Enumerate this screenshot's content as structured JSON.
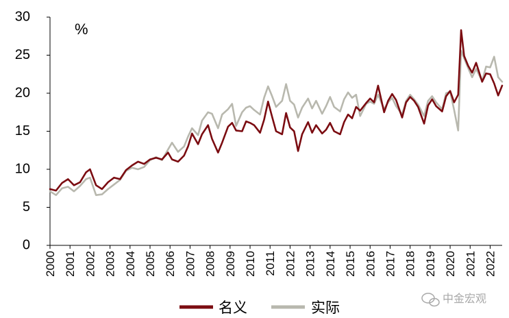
{
  "chart_data": {
    "type": "line",
    "unit_label": "%",
    "ylim": [
      0,
      30
    ],
    "y_ticks": [
      "0",
      "5",
      "10",
      "15",
      "20",
      "25",
      "30"
    ],
    "x_ticks": [
      "2000",
      "2001",
      "2002",
      "2003",
      "2004",
      "2005",
      "2006",
      "2007",
      "2008",
      "2009",
      "2010",
      "2011",
      "2012",
      "2013",
      "2014",
      "2015",
      "2016",
      "2017",
      "2018",
      "2019",
      "2020",
      "2021",
      "2022"
    ],
    "xlim": [
      2000.0,
      2022.6
    ],
    "grid": false,
    "legend_position": "bottom",
    "series": [
      {
        "name": "名义",
        "color": "#7b0c11",
        "points": [
          [
            2000.0,
            7.4
          ],
          [
            2000.3,
            7.2
          ],
          [
            2000.6,
            8.2
          ],
          [
            2000.9,
            8.7
          ],
          [
            2001.2,
            7.9
          ],
          [
            2001.5,
            8.3
          ],
          [
            2001.8,
            9.6
          ],
          [
            2002.0,
            10.0
          ],
          [
            2002.3,
            7.9
          ],
          [
            2002.6,
            7.4
          ],
          [
            2002.9,
            8.3
          ],
          [
            2003.2,
            8.9
          ],
          [
            2003.5,
            8.7
          ],
          [
            2003.8,
            9.9
          ],
          [
            2004.1,
            10.5
          ],
          [
            2004.4,
            11.0
          ],
          [
            2004.7,
            10.7
          ],
          [
            2005.0,
            11.3
          ],
          [
            2005.3,
            11.5
          ],
          [
            2005.6,
            11.3
          ],
          [
            2005.9,
            12.2
          ],
          [
            2006.1,
            11.3
          ],
          [
            2006.4,
            11.0
          ],
          [
            2006.7,
            11.8
          ],
          [
            2006.9,
            13.0
          ],
          [
            2007.1,
            14.7
          ],
          [
            2007.4,
            13.3
          ],
          [
            2007.6,
            14.6
          ],
          [
            2007.9,
            15.8
          ],
          [
            2008.1,
            14.0
          ],
          [
            2008.4,
            12.2
          ],
          [
            2008.6,
            13.5
          ],
          [
            2008.9,
            15.6
          ],
          [
            2009.1,
            16.1
          ],
          [
            2009.3,
            15.1
          ],
          [
            2009.6,
            15.0
          ],
          [
            2009.8,
            16.3
          ],
          [
            2010.0,
            16.1
          ],
          [
            2010.2,
            15.8
          ],
          [
            2010.5,
            14.8
          ],
          [
            2010.7,
            16.5
          ],
          [
            2010.9,
            18.9
          ],
          [
            2011.1,
            16.9
          ],
          [
            2011.3,
            15.0
          ],
          [
            2011.6,
            14.6
          ],
          [
            2011.8,
            17.4
          ],
          [
            2012.0,
            15.5
          ],
          [
            2012.2,
            15.0
          ],
          [
            2012.4,
            12.4
          ],
          [
            2012.6,
            14.6
          ],
          [
            2012.9,
            16.2
          ],
          [
            2013.1,
            14.8
          ],
          [
            2013.3,
            15.8
          ],
          [
            2013.6,
            14.7
          ],
          [
            2013.8,
            15.2
          ],
          [
            2014.0,
            16.1
          ],
          [
            2014.2,
            15.0
          ],
          [
            2014.5,
            14.6
          ],
          [
            2014.7,
            16.2
          ],
          [
            2014.9,
            17.2
          ],
          [
            2015.1,
            16.7
          ],
          [
            2015.3,
            18.2
          ],
          [
            2015.5,
            17.7
          ],
          [
            2015.8,
            18.7
          ],
          [
            2016.0,
            19.3
          ],
          [
            2016.2,
            18.8
          ],
          [
            2016.4,
            21.0
          ],
          [
            2016.7,
            17.5
          ],
          [
            2016.9,
            19.0
          ],
          [
            2017.1,
            19.9
          ],
          [
            2017.3,
            19.1
          ],
          [
            2017.6,
            16.8
          ],
          [
            2017.8,
            18.8
          ],
          [
            2018.0,
            19.5
          ],
          [
            2018.2,
            19.0
          ],
          [
            2018.4,
            18.2
          ],
          [
            2018.7,
            16.0
          ],
          [
            2018.9,
            18.4
          ],
          [
            2019.1,
            19.2
          ],
          [
            2019.3,
            18.3
          ],
          [
            2019.6,
            17.6
          ],
          [
            2019.8,
            19.6
          ],
          [
            2020.0,
            20.3
          ],
          [
            2020.2,
            18.8
          ],
          [
            2020.4,
            19.8
          ],
          [
            2020.55,
            28.3
          ],
          [
            2020.7,
            24.9
          ],
          [
            2020.9,
            23.6
          ],
          [
            2021.1,
            22.7
          ],
          [
            2021.3,
            24.0
          ],
          [
            2021.6,
            21.5
          ],
          [
            2021.8,
            22.6
          ],
          [
            2022.0,
            22.5
          ],
          [
            2022.2,
            21.3
          ],
          [
            2022.4,
            19.7
          ],
          [
            2022.6,
            21.0
          ]
        ]
      },
      {
        "name": "实际",
        "color": "#b8b8ae",
        "points": [
          [
            2000.0,
            7.1
          ],
          [
            2000.3,
            6.6
          ],
          [
            2000.6,
            7.5
          ],
          [
            2000.9,
            7.7
          ],
          [
            2001.2,
            7.1
          ],
          [
            2001.5,
            7.8
          ],
          [
            2001.8,
            8.7
          ],
          [
            2002.0,
            8.9
          ],
          [
            2002.3,
            6.6
          ],
          [
            2002.6,
            6.7
          ],
          [
            2002.9,
            7.4
          ],
          [
            2003.2,
            8.0
          ],
          [
            2003.5,
            8.6
          ],
          [
            2003.8,
            9.8
          ],
          [
            2004.1,
            10.2
          ],
          [
            2004.4,
            10.0
          ],
          [
            2004.7,
            10.3
          ],
          [
            2005.0,
            11.2
          ],
          [
            2005.3,
            11.6
          ],
          [
            2005.6,
            11.2
          ],
          [
            2005.9,
            12.6
          ],
          [
            2006.1,
            13.5
          ],
          [
            2006.4,
            12.3
          ],
          [
            2006.7,
            13.0
          ],
          [
            2006.9,
            14.3
          ],
          [
            2007.1,
            15.4
          ],
          [
            2007.4,
            14.5
          ],
          [
            2007.6,
            16.4
          ],
          [
            2007.9,
            17.5
          ],
          [
            2008.1,
            17.3
          ],
          [
            2008.4,
            15.4
          ],
          [
            2008.6,
            17.2
          ],
          [
            2008.9,
            17.9
          ],
          [
            2009.1,
            18.6
          ],
          [
            2009.3,
            15.7
          ],
          [
            2009.6,
            17.5
          ],
          [
            2009.8,
            18.1
          ],
          [
            2010.0,
            18.3
          ],
          [
            2010.2,
            17.8
          ],
          [
            2010.5,
            17.2
          ],
          [
            2010.7,
            19.4
          ],
          [
            2010.9,
            20.9
          ],
          [
            2011.1,
            19.6
          ],
          [
            2011.3,
            18.2
          ],
          [
            2011.6,
            19.0
          ],
          [
            2011.8,
            21.2
          ],
          [
            2012.0,
            19.0
          ],
          [
            2012.2,
            18.5
          ],
          [
            2012.4,
            16.8
          ],
          [
            2012.6,
            18.1
          ],
          [
            2012.9,
            19.3
          ],
          [
            2013.1,
            18.0
          ],
          [
            2013.3,
            19.0
          ],
          [
            2013.6,
            17.3
          ],
          [
            2013.8,
            18.3
          ],
          [
            2014.0,
            19.5
          ],
          [
            2014.2,
            18.2
          ],
          [
            2014.5,
            17.6
          ],
          [
            2014.7,
            19.2
          ],
          [
            2014.9,
            20.1
          ],
          [
            2015.1,
            19.4
          ],
          [
            2015.3,
            19.8
          ],
          [
            2015.5,
            17.0
          ],
          [
            2015.8,
            18.6
          ],
          [
            2016.0,
            18.9
          ],
          [
            2016.2,
            18.6
          ],
          [
            2016.4,
            19.8
          ],
          [
            2016.7,
            17.9
          ],
          [
            2016.9,
            18.8
          ],
          [
            2017.1,
            19.4
          ],
          [
            2017.3,
            18.3
          ],
          [
            2017.6,
            17.2
          ],
          [
            2017.8,
            19.0
          ],
          [
            2018.0,
            19.8
          ],
          [
            2018.2,
            19.2
          ],
          [
            2018.4,
            18.5
          ],
          [
            2018.7,
            17.0
          ],
          [
            2018.9,
            19.0
          ],
          [
            2019.1,
            19.6
          ],
          [
            2019.3,
            18.8
          ],
          [
            2019.6,
            17.9
          ],
          [
            2019.8,
            20.0
          ],
          [
            2020.0,
            20.2
          ],
          [
            2020.2,
            17.8
          ],
          [
            2020.4,
            15.1
          ],
          [
            2020.55,
            25.6
          ],
          [
            2020.7,
            24.6
          ],
          [
            2020.9,
            23.3
          ],
          [
            2021.1,
            22.1
          ],
          [
            2021.3,
            23.2
          ],
          [
            2021.6,
            21.6
          ],
          [
            2021.8,
            23.5
          ],
          [
            2022.0,
            23.4
          ],
          [
            2022.2,
            24.8
          ],
          [
            2022.4,
            22.1
          ],
          [
            2022.6,
            21.5
          ]
        ]
      }
    ]
  },
  "legend": [
    {
      "label": "名义",
      "color": "#7b0c11"
    },
    {
      "label": "实际",
      "color": "#b8b8ae"
    }
  ],
  "watermark": {
    "text": "中金宏观",
    "icon": "wechat-icon"
  }
}
